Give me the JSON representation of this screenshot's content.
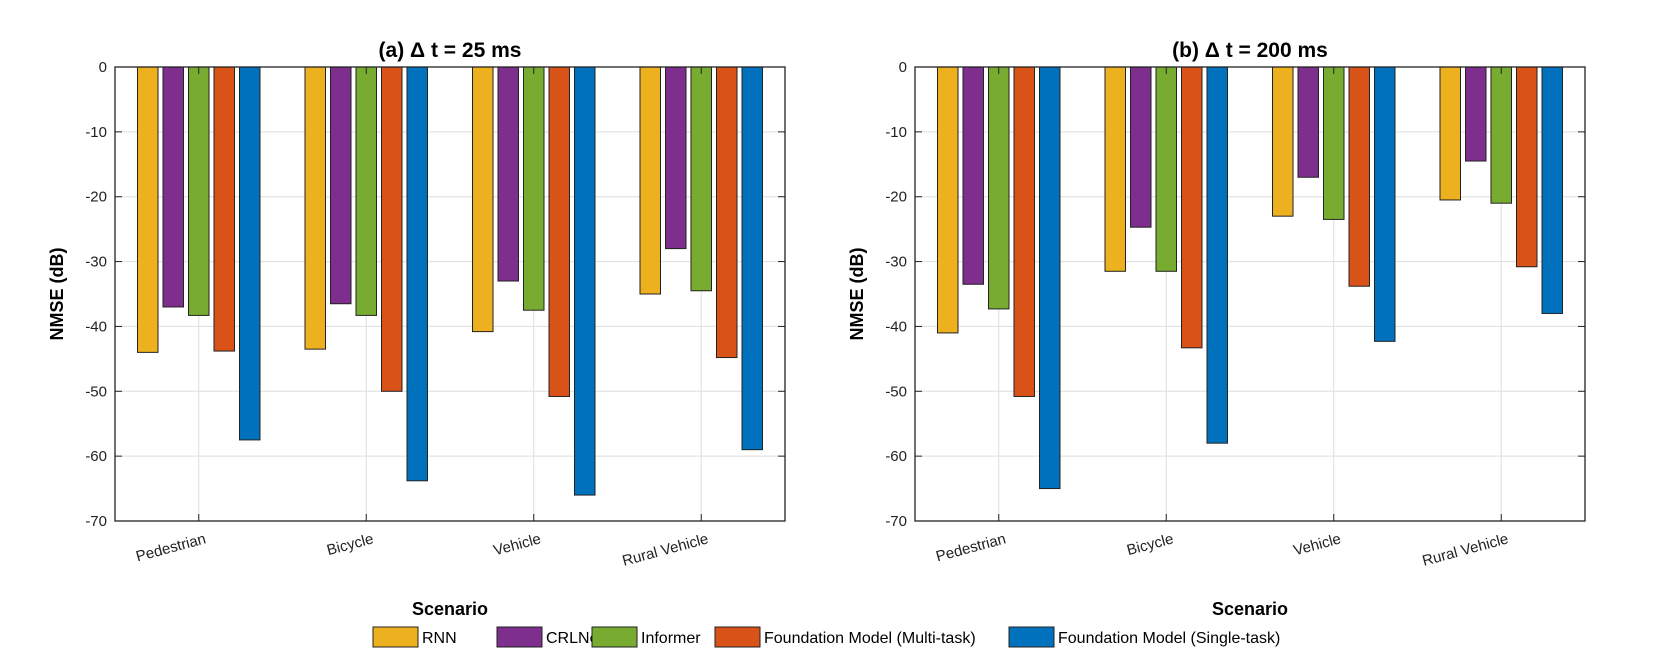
{
  "chart_data": [
    {
      "type": "bar",
      "title": "(a) Δ t = 25 ms",
      "xlabel": "Scenario",
      "ylabel": "NMSE (dB)",
      "ylim": [
        -70,
        0
      ],
      "yticks": [
        0,
        -10,
        -20,
        -30,
        -40,
        -50,
        -60,
        -70
      ],
      "grid": true,
      "categories": [
        "Pedestrian",
        "Bicycle",
        "Vehicle",
        "Rural Vehicle"
      ],
      "series": [
        {
          "name": "RNN",
          "values": [
            -44.0,
            -43.5,
            -40.8,
            -35.0
          ]
        },
        {
          "name": "CRLNet",
          "values": [
            -37.0,
            -36.5,
            -33.0,
            -28.0
          ]
        },
        {
          "name": "Informer",
          "values": [
            -38.3,
            -38.3,
            -37.5,
            -34.5
          ]
        },
        {
          "name": "Foundation Model (Multi-task)",
          "values": [
            -43.8,
            -50.0,
            -50.8,
            -44.8
          ]
        },
        {
          "name": "Foundation Model (Single-task)",
          "values": [
            -57.5,
            -63.8,
            -66.0,
            -59.0
          ]
        }
      ]
    },
    {
      "type": "bar",
      "title": "(b) Δ t = 200 ms",
      "xlabel": "Scenario",
      "ylabel": "NMSE (dB)",
      "ylim": [
        -70,
        0
      ],
      "yticks": [
        0,
        -10,
        -20,
        -30,
        -40,
        -50,
        -60,
        -70
      ],
      "grid": true,
      "categories": [
        "Pedestrian",
        "Bicycle",
        "Vehicle",
        "Rural Vehicle"
      ],
      "series": [
        {
          "name": "RNN",
          "values": [
            -41.0,
            -31.5,
            -23.0,
            -20.5
          ]
        },
        {
          "name": "CRLNet",
          "values": [
            -33.5,
            -24.7,
            -17.0,
            -14.5
          ]
        },
        {
          "name": "Informer",
          "values": [
            -37.3,
            -31.5,
            -23.5,
            -21.0
          ]
        },
        {
          "name": "Foundation Model (Multi-task)",
          "values": [
            -50.8,
            -43.3,
            -33.8,
            -30.8
          ]
        },
        {
          "name": "Foundation Model (Single-task)",
          "values": [
            -65.0,
            -58.0,
            -42.3,
            -38.0
          ]
        }
      ]
    }
  ],
  "legend": {
    "position": "bottom-center",
    "items": [
      {
        "label": "RNN",
        "color": "#EDB120"
      },
      {
        "label": "CRLNet",
        "color": "#7E2F8E"
      },
      {
        "label": "Informer",
        "color": "#77AC30"
      },
      {
        "label": "Foundation Model (Multi-task)",
        "color": "#D95319"
      },
      {
        "label": "Foundation Model (Single-task)",
        "color": "#0072BD"
      }
    ]
  },
  "series_colors": [
    "#EDB120",
    "#7E2F8E",
    "#77AC30",
    "#D95319",
    "#0072BD"
  ]
}
